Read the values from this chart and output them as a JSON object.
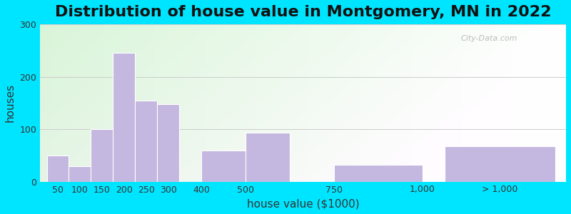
{
  "title": "Distribution of house value in Montgomery, MN in 2022",
  "xlabel": "house value ($1000)",
  "ylabel": "houses",
  "bar_color": "#c5b8e0",
  "bar_edgecolor": "#ffffff",
  "ylim": [
    0,
    300
  ],
  "yticks": [
    0,
    100,
    200,
    300
  ],
  "values": [
    50,
    30,
    100,
    245,
    155,
    148,
    60,
    93,
    32,
    67
  ],
  "positions": [
    0,
    1,
    2,
    3,
    4,
    5,
    7,
    9,
    13,
    18
  ],
  "widths": [
    1,
    1,
    1,
    1,
    1,
    1,
    2,
    2,
    4,
    5
  ],
  "xtick_pos": [
    0.5,
    1.5,
    2.5,
    3.5,
    4.5,
    5.5,
    7,
    9,
    13,
    17,
    20.5
  ],
  "xtick_labels": [
    "50",
    "100",
    "150",
    "200",
    "250",
    "300",
    "400",
    "500",
    "750",
    "1,000",
    "> 1,000"
  ],
  "xlim": [
    -0.3,
    23.5
  ],
  "bg_outer": "#00e5ff",
  "watermark": "City-Data.com",
  "title_fontsize": 16,
  "axis_fontsize": 11,
  "tick_fontsize": 9
}
